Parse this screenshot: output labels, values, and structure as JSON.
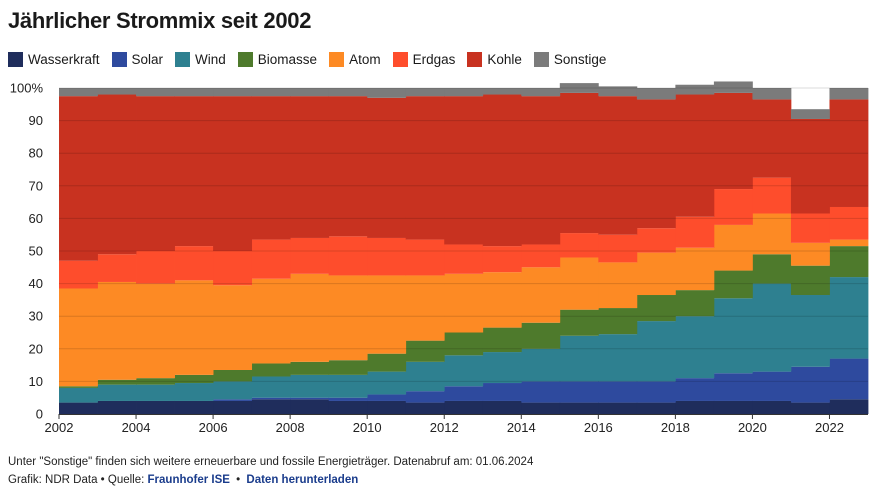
{
  "title": "Jährlicher Strommix seit 2002",
  "note": "Unter \"Sonstige\" finden sich weitere erneuerbare und fossile Energieträger. Datenabruf am: 01.06.2024",
  "credit": {
    "prefix": "Grafik: NDR Data • Quelle:",
    "source_link": "Fraunhofer ISE",
    "separator": "•",
    "download_link": "Daten herunterladen"
  },
  "chart_data": {
    "type": "area",
    "stacking": "step",
    "title": "Jährlicher Strommix seit 2002",
    "x": [
      2002,
      2003,
      2004,
      2005,
      2006,
      2007,
      2008,
      2009,
      2010,
      2011,
      2012,
      2013,
      2014,
      2015,
      2016,
      2017,
      2018,
      2019,
      2020,
      2021,
      2022
    ],
    "xlim": [
      2002,
      2023
    ],
    "ylim": [
      0,
      100
    ],
    "x_ticks": [
      "2002",
      "2004",
      "2006",
      "2008",
      "2010",
      "2012",
      "2014",
      "2016",
      "2018",
      "2020",
      "2022"
    ],
    "y_ticks": [
      "0",
      "10",
      "20",
      "30",
      "40",
      "50",
      "60",
      "70",
      "80",
      "90",
      "100%"
    ],
    "grid": true,
    "legend_position": "top-left",
    "series": [
      {
        "name": "Wasserkraft",
        "color": "#1f2d5c",
        "values": [
          3.5,
          4,
          4,
          4,
          4,
          4.5,
          4.5,
          4,
          4,
          3.5,
          4,
          4,
          3.5,
          3.5,
          3.5,
          3.5,
          4,
          4,
          4,
          3.5,
          4.5
        ]
      },
      {
        "name": "Solar",
        "color": "#2e4a9e",
        "values": [
          0,
          0,
          0,
          0,
          0.5,
          0.5,
          0.5,
          1,
          2,
          3.5,
          4.5,
          5.5,
          6.5,
          6.5,
          6.5,
          6.5,
          7,
          8.5,
          9,
          11,
          12.5
        ]
      },
      {
        "name": "Wind",
        "color": "#2e8090",
        "values": [
          4.5,
          5,
          5,
          5.5,
          5.5,
          6.5,
          7,
          7,
          7,
          9,
          9.5,
          9.5,
          10,
          14,
          14.5,
          18.5,
          19,
          23,
          27,
          22,
          25
        ]
      },
      {
        "name": "Biomasse",
        "color": "#4e7a2c",
        "values": [
          0.5,
          1.5,
          2,
          2.5,
          3.5,
          4,
          4,
          4.5,
          5.5,
          6.5,
          7,
          7.5,
          8,
          8,
          8,
          8,
          8,
          8.5,
          9,
          9,
          9.5
        ]
      },
      {
        "name": "Atom",
        "color": "#fd8a24",
        "values": [
          30,
          30,
          29,
          29,
          26,
          26,
          27,
          26,
          24,
          20,
          18,
          17,
          17,
          16,
          14,
          13,
          13,
          14,
          12.5,
          7,
          2
        ]
      },
      {
        "name": "Erdgas",
        "color": "#fe4d2c",
        "values": [
          8.5,
          8.5,
          10,
          10.5,
          10.5,
          12,
          11,
          12,
          11.5,
          11,
          9,
          8,
          7,
          7.5,
          8.5,
          7.5,
          9.5,
          11,
          11,
          9,
          10
        ]
      },
      {
        "name": "Kohle",
        "color": "#c83220",
        "values": [
          50.5,
          49,
          47.5,
          46,
          47.5,
          44,
          43.5,
          43,
          43,
          44,
          45.5,
          46.5,
          45.5,
          43,
          42.5,
          39.5,
          37.5,
          29.5,
          24,
          29,
          33
        ]
      },
      {
        "name": "Sonstige",
        "color": "#7b7b7b",
        "values": [
          2.5,
          2,
          2.5,
          2.5,
          2.5,
          2.5,
          2.5,
          2.5,
          3,
          2.5,
          2.5,
          2,
          2.5,
          3,
          3,
          3.5,
          3,
          3.5,
          3.5,
          3,
          3.5
        ]
      }
    ]
  }
}
